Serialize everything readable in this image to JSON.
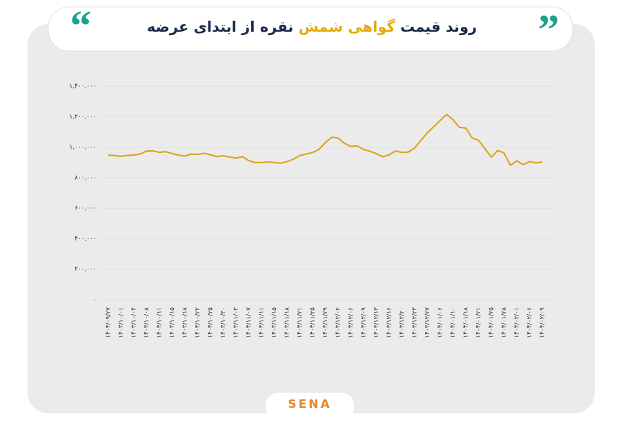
{
  "chart_data": {
    "type": "line",
    "title": [
      "روند قیمت ",
      "گواهی شمش",
      " نقره از ابتدای عرضه"
    ],
    "title_colors": [
      "#1b2a4a",
      "#e3a906",
      "#1b2a4a"
    ],
    "categories": [
      "۱۴۰۳/۰۹/۲۷",
      null,
      "۱۴۰۳/۱۰/۰۱",
      null,
      "۱۴۰۳/۱۰/۰۴",
      null,
      "۱۴۰۳/۱۰/۰۸",
      null,
      "۱۴۰۳/۱۰/۱۱",
      null,
      "۱۴۰۳/۱۰/۱۵",
      null,
      "۱۴۰۳/۱۰/۱۸",
      null,
      "۱۴۰۳/۱۰/۲۲",
      null,
      "۱۴۰۳/۱۰/۲۵",
      null,
      "۱۴۰۳/۱۰/۳۰",
      null,
      "۱۴۰۳/۱۱/۰۳",
      null,
      "۱۴۰۳/۱۱/۰۷",
      null,
      "۱۴۰۳/۱۱/۱۱",
      null,
      "۱۴۰۳/۱۱/۱۵",
      null,
      "۱۴۰۳/۱۱/۱۸",
      null,
      "۱۴۰۳/۱۱/۲۱",
      null,
      "۱۴۰۳/۱۱/۲۵",
      null,
      "۱۴۰۳/۱۱/۲۹",
      null,
      "۱۴۰۳/۱۲/۰۲",
      null,
      "۱۴۰۳/۱۲/۰۶",
      null,
      "۱۴۰۳/۱۲/۰۹",
      null,
      "۱۴۰۳/۱۲/۱۳",
      null,
      "۱۴۰۳/۱۲/۱۶",
      null,
      "۱۴۰۳/۱۲/۲۰",
      null,
      "۱۴۰۳/۱۲/۲۳",
      null,
      "۱۴۰۳/۱۲/۲۷",
      null,
      "۱۴۰۴/۰۱/۰۶",
      null,
      "۱۴۰۴/۰۱/۱۰",
      null,
      "۱۴۰۴/۰۱/۱۸",
      null,
      "۱۴۰۴/۰۱/۲۱",
      null,
      "۱۴۰۴/۰۱/۲۵",
      null,
      "۱۴۰۴/۰۱/۲۸",
      null,
      "۱۴۰۴/۰۲/۰۱",
      null,
      "۱۴۰۴/۰۲/۰۶",
      null,
      "۱۴۰۴/۰۲/۰۹"
    ],
    "values": [
      948000,
      945000,
      940000,
      946000,
      948000,
      955000,
      975000,
      975000,
      966000,
      970000,
      958000,
      948000,
      942000,
      955000,
      952000,
      960000,
      950000,
      938000,
      944000,
      935000,
      928000,
      938000,
      912000,
      899000,
      899000,
      903000,
      899000,
      895000,
      905000,
      921000,
      945000,
      955000,
      965000,
      985000,
      1030000,
      1065000,
      1060000,
      1025000,
      1005000,
      1008000,
      985000,
      973000,
      957000,
      937000,
      950000,
      975000,
      965000,
      968000,
      995000,
      1045000,
      1095000,
      1135000,
      1175000,
      1215000,
      1180000,
      1130000,
      1125000,
      1060000,
      1045000,
      990000,
      935000,
      978000,
      962000,
      881000,
      910000,
      885000,
      905000,
      897000,
      903000
    ],
    "color": "#d9a61c",
    "ylim": [
      0,
      1400000
    ],
    "yticks": [
      {
        "value": 0,
        "label": "۰"
      },
      {
        "value": 200000,
        "label": "۲۰۰,۰۰۰"
      },
      {
        "value": 400000,
        "label": "۴۰۰,۰۰۰"
      },
      {
        "value": 600000,
        "label": "۶۰۰,۰۰۰"
      },
      {
        "value": 800000,
        "label": "۸۰۰,۰۰۰"
      },
      {
        "value": 1000000,
        "label": "۱,۰۰۰,۰۰۰"
      },
      {
        "value": 1200000,
        "label": "۱,۲۰۰,۰۰۰"
      },
      {
        "value": 1400000,
        "label": "۱,۴۰۰,۰۰۰"
      }
    ],
    "grid": true
  },
  "logo_text": "SENA"
}
